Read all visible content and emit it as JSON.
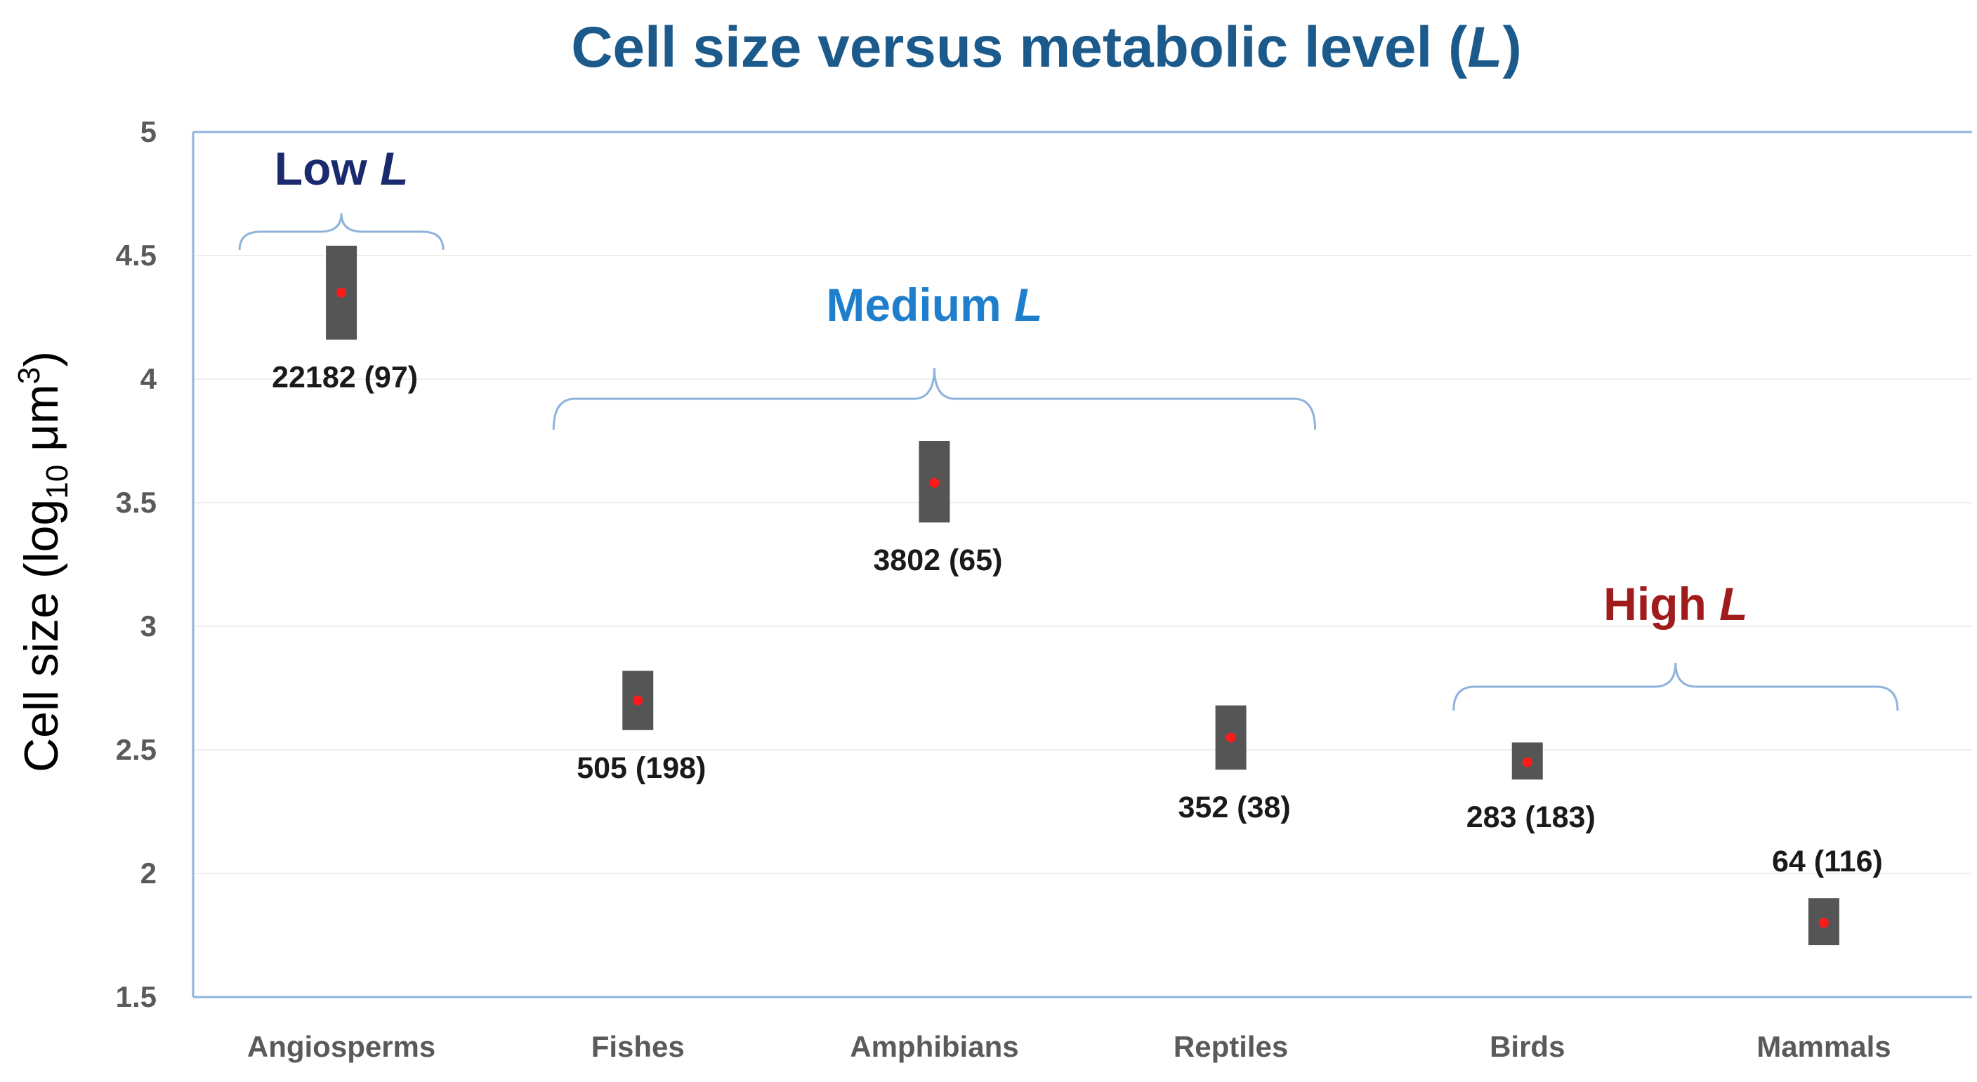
{
  "chart_data": {
    "type": "range",
    "title": "Cell size versus metabolic level (L)",
    "title_parts": {
      "main": "Cell size versus metabolic level (",
      "italic": "L",
      "close": ")"
    },
    "xlabel": "",
    "ylabel": "Cell size (log10 μm3)",
    "ylabel_parts": {
      "prefix": "Cell size (log",
      "subscript": "10",
      "middle": " μm",
      "superscript": "3",
      "suffix": ")"
    },
    "ylim": [
      1.5,
      5
    ],
    "yticks": [
      1.5,
      2,
      2.5,
      3,
      3.5,
      4,
      4.5,
      5
    ],
    "grid": true,
    "categories": [
      "Angiosperms",
      "Fishes",
      "Amphibians",
      "Reptiles",
      "Birds",
      "Mammals"
    ],
    "points": [
      {
        "category": "Angiosperms",
        "mean": 4.35,
        "low": 4.16,
        "high": 4.54,
        "label": "22182 (97)"
      },
      {
        "category": "Fishes",
        "mean": 2.7,
        "low": 2.58,
        "high": 2.82,
        "label": "505 (198)"
      },
      {
        "category": "Amphibians",
        "mean": 3.58,
        "low": 3.42,
        "high": 3.75,
        "label": "3802 (65)"
      },
      {
        "category": "Reptiles",
        "mean": 2.55,
        "low": 2.42,
        "high": 2.68,
        "label": "352 (38)"
      },
      {
        "category": "Birds",
        "mean": 2.45,
        "low": 2.38,
        "high": 2.53,
        "label": "283 (183)"
      },
      {
        "category": "Mammals",
        "mean": 1.8,
        "low": 1.71,
        "high": 1.9,
        "label": "64 (116)"
      }
    ],
    "groups": [
      {
        "name": "Low",
        "italic": "L",
        "from": "Angiosperms",
        "to": "Angiosperms",
        "color": "#1a2a6c"
      },
      {
        "name": "Medium",
        "italic": "L",
        "from": "Fishes",
        "to": "Reptiles",
        "color": "#1f7fcc"
      },
      {
        "name": "High",
        "italic": "L",
        "from": "Birds",
        "to": "Mammals",
        "color": "#a01c1c"
      }
    ]
  },
  "colors": {
    "title": "#1b5a8a",
    "bar": "#555555",
    "dot": "#ff1a1a",
    "axis": "#8fb4dc",
    "grid": "#eeeeee",
    "brace": "#8fb4dc",
    "tick_text": "#5a5a5a"
  }
}
